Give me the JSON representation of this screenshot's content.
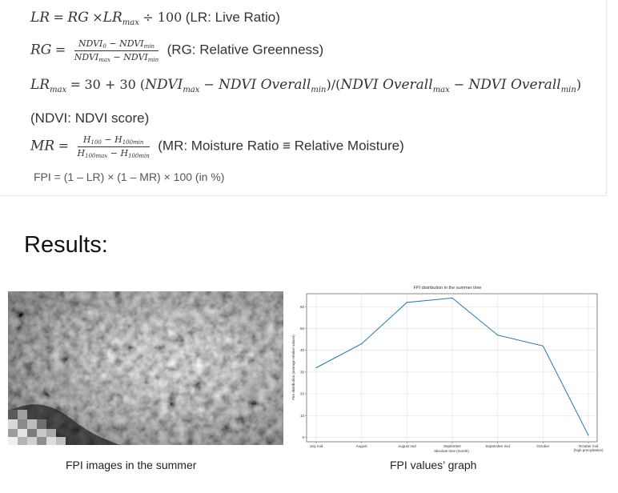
{
  "formulas": {
    "lr": {
      "lhs": "LR",
      "eq": "=",
      "rg": "RG",
      "times": "×",
      "lr": "LR",
      "max": "max",
      "div": "÷ 100",
      "desc": "(LR: Live Ratio)"
    },
    "rg": {
      "lhs": "RG",
      "eq": "=",
      "num_a": "NDVI",
      "num_a_sub": "0",
      "num_minus": " − ",
      "num_b": "NDVI",
      "num_b_sub": "min",
      "den_a": "NDVI",
      "den_a_sub": "max",
      "den_minus": " − ",
      "den_b": "NDVI",
      "den_b_sub": "min",
      "desc": "(RG: Relative Greenness)"
    },
    "lrmax": {
      "lhs": "LR",
      "lhs_sub": "max",
      "eq": "=",
      "rest_a": "30 + 30 (",
      "nd1": "NDVI",
      "nd1_sub": "max",
      "minus1": " − ",
      "ov1": "NDVI Overall",
      "ov1_sub": "min",
      "mid": ")/(",
      "ov2": "NDVI Overall",
      "ov2_sub": "max",
      "minus2": " − ",
      "ov3": "NDVI Overall",
      "ov3_sub": "min",
      "end": ")"
    },
    "ndvi_note": "(NDVI: NDVI score)",
    "mr": {
      "lhs": "MR",
      "eq": "=",
      "num_a": "H",
      "num_a_sub": "100",
      "num_minus": " − ",
      "num_b": "H",
      "num_b_sub": "100min",
      "den_a": "H",
      "den_a_sub": "100max",
      "den_minus": " − ",
      "den_b": "H",
      "den_b_sub": "100min",
      "desc": "(MR: Moisture Ratio ≡ Relative Moisture)"
    },
    "fpi": "FPI = (1 – LR) × (1 – MR) × 100 (in %)"
  },
  "results_heading": "Results:",
  "captions": {
    "images": "FPI images in the summer",
    "graph": "FPI values’ graph"
  },
  "chart_data": {
    "type": "line",
    "title": "FPI distribution in the summer time",
    "xlabel": "absolute time (month)",
    "ylabel": "Fire distribution (average relative values)",
    "categories": [
      "July mid",
      "August",
      "August mid",
      "September",
      "September mid",
      "October",
      "October mid\n(high precipitation)"
    ],
    "series": [
      {
        "values": [
          32,
          43,
          62,
          64,
          47,
          42,
          1
        ]
      }
    ],
    "yticks": [
      0,
      10,
      20,
      30,
      40,
      50,
      60
    ],
    "ylim": [
      -2,
      66
    ],
    "grid": true,
    "line_color": "#1f77b4"
  }
}
